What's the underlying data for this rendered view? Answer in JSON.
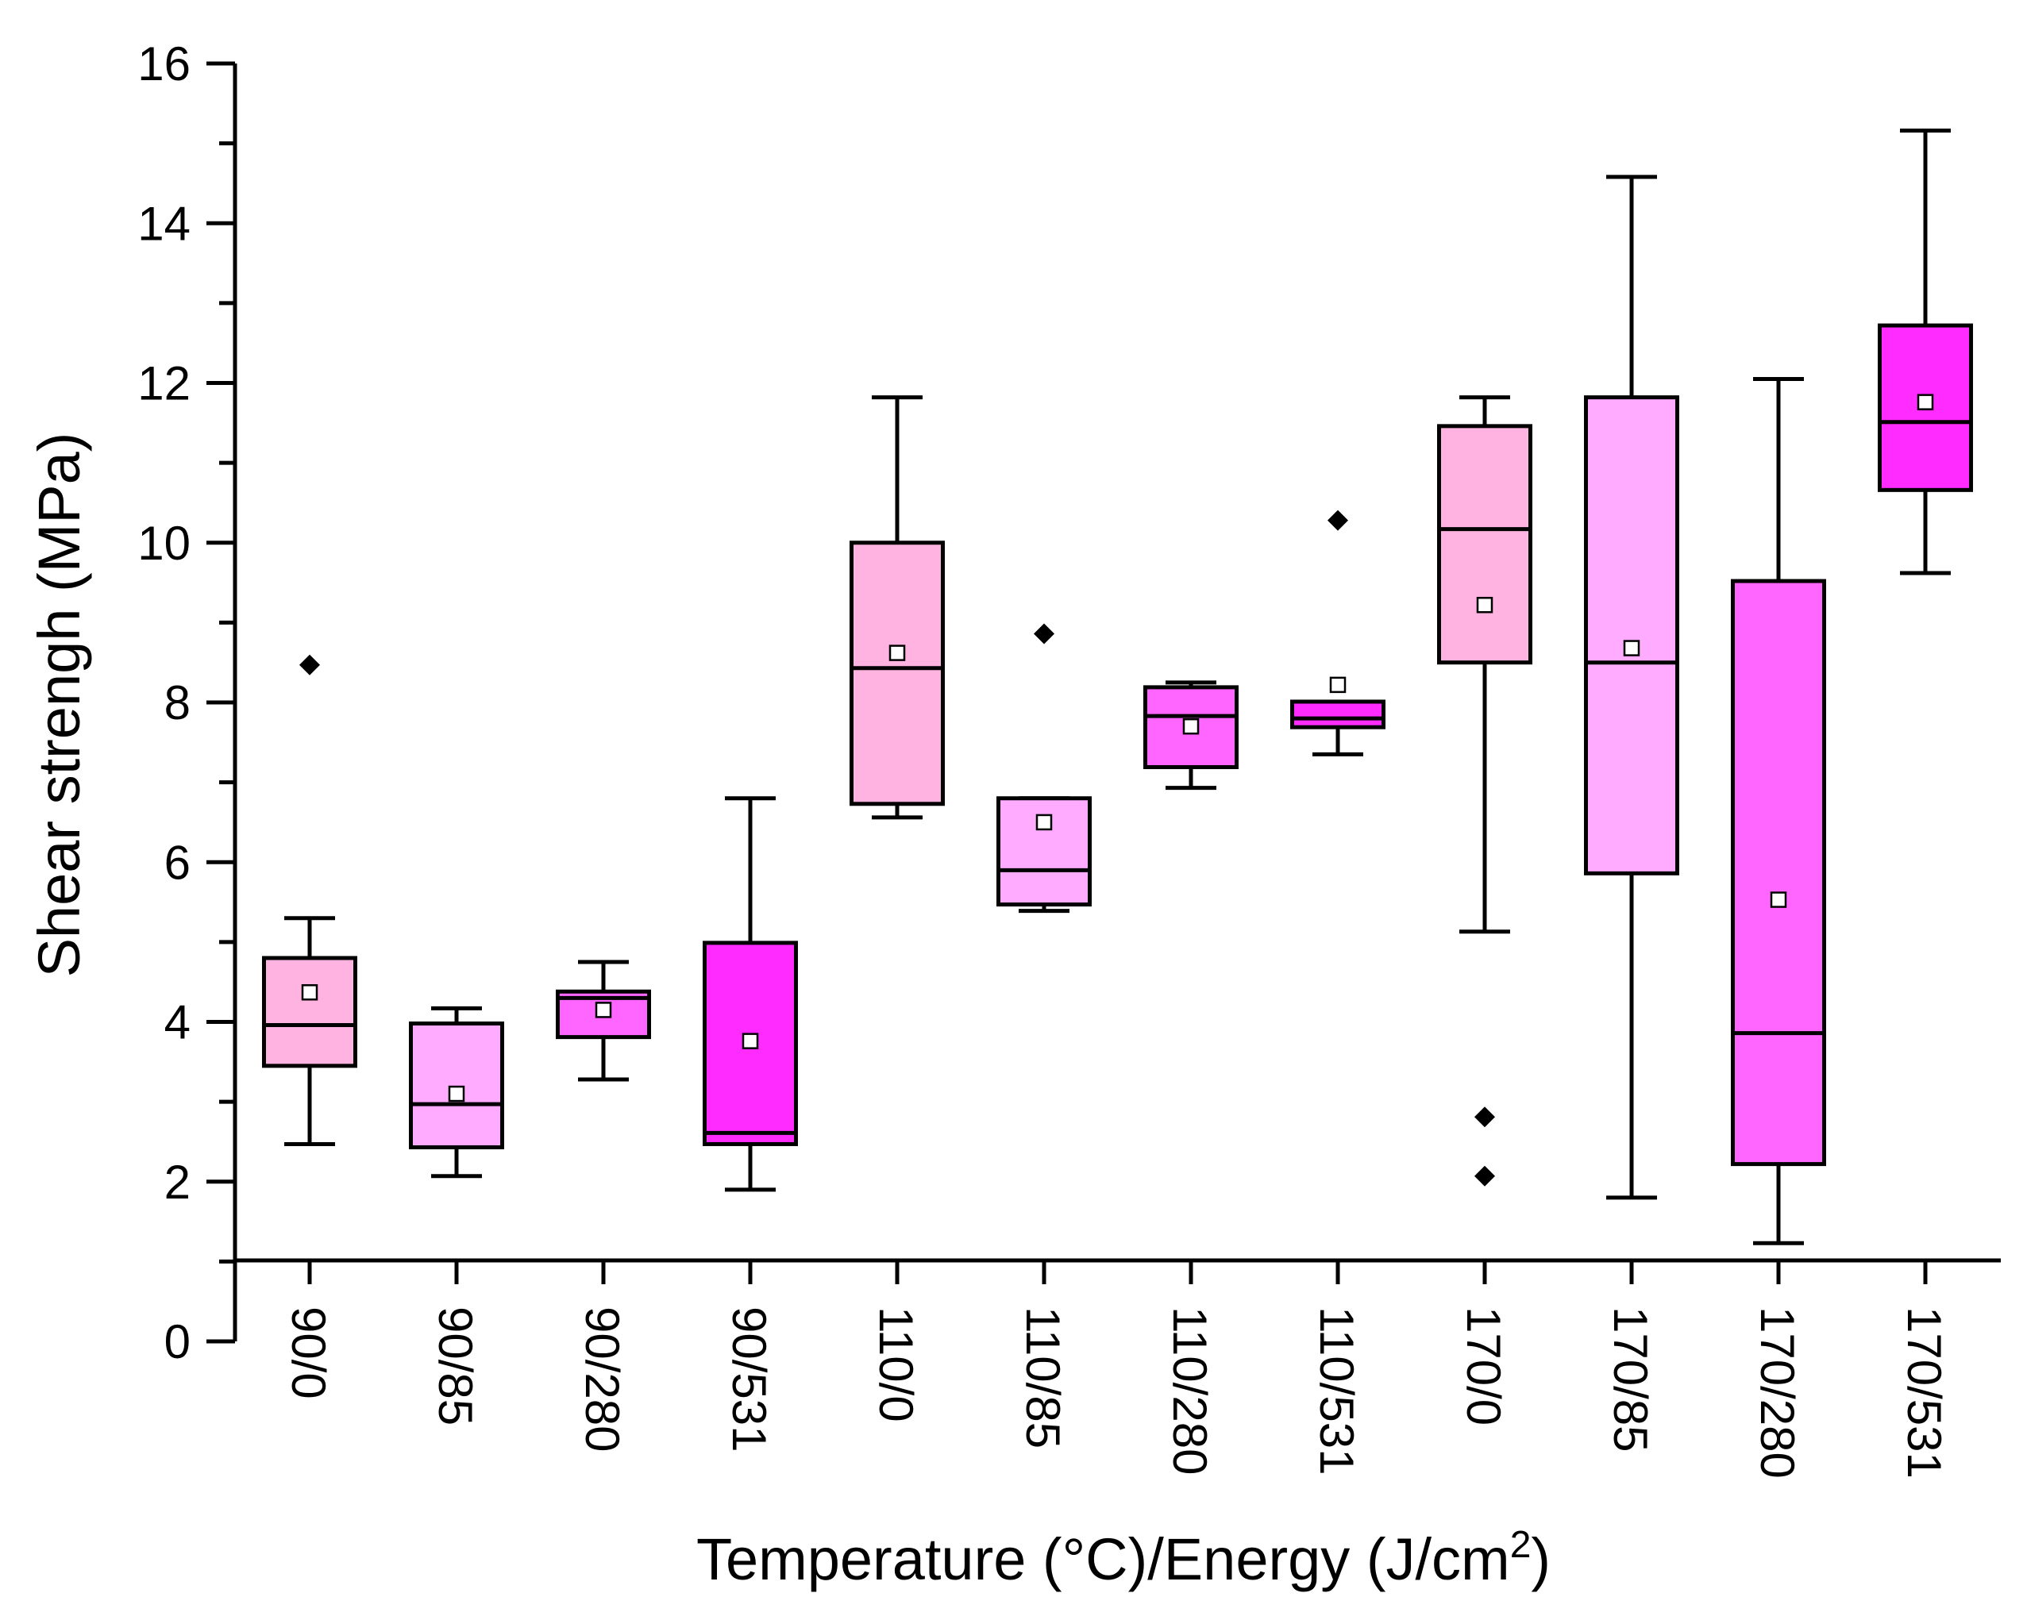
{
  "chart_data": {
    "type": "box",
    "title": "",
    "xlabel": "Temperature (°C)/Energy (J/cm",
    "xlabel_superscript": "2",
    "xlabel_suffix": ")",
    "ylabel": "Shear strengh (MPa)",
    "ylim": [
      0,
      16
    ],
    "yticks": [
      "0",
      "2",
      "4",
      "6",
      "8",
      "10",
      "12",
      "14",
      "16"
    ],
    "categories": [
      "90/0",
      "90/85",
      "90/280",
      "90/531",
      "110/0",
      "110/85",
      "110/280",
      "110/531",
      "170/0",
      "170/85",
      "170/280",
      "170/531"
    ],
    "colors": {
      "light": "#FFB3E0",
      "lighter": "#FFABFF",
      "medium": "#FF66FF",
      "dark": "#FF2BFF",
      "outline": "#000000"
    },
    "series": [
      {
        "name": "90/0",
        "whisker_low": 2.47,
        "q1": 3.45,
        "median": 3.96,
        "q3": 4.8,
        "whisker_high": 5.3,
        "mean": 4.37,
        "outliers": [
          8.47
        ],
        "color": "#FFB3E0"
      },
      {
        "name": "90/85",
        "whisker_low": 2.07,
        "q1": 2.43,
        "median": 2.97,
        "q3": 3.98,
        "whisker_high": 4.17,
        "mean": 3.1,
        "outliers": [],
        "color": "#FFABFF"
      },
      {
        "name": "90/280",
        "whisker_low": 3.28,
        "q1": 3.81,
        "median": 4.3,
        "q3": 4.38,
        "whisker_high": 4.75,
        "mean": 4.15,
        "outliers": [],
        "color": "#FF66FF"
      },
      {
        "name": "90/531",
        "whisker_low": 1.9,
        "q1": 2.47,
        "median": 2.61,
        "q3": 4.99,
        "whisker_high": 6.8,
        "mean": 3.76,
        "outliers": [],
        "color": "#FF2BFF"
      },
      {
        "name": "110/0",
        "whisker_low": 6.56,
        "q1": 6.73,
        "median": 8.43,
        "q3": 10.0,
        "whisker_high": 11.82,
        "mean": 8.62,
        "outliers": [],
        "color": "#FFB3E0"
      },
      {
        "name": "110/85",
        "whisker_low": 5.39,
        "q1": 5.47,
        "median": 5.9,
        "q3": 6.8,
        "whisker_high": 6.8,
        "mean": 6.5,
        "outliers": [
          8.86
        ],
        "color": "#FFABFF"
      },
      {
        "name": "110/280",
        "whisker_low": 6.93,
        "q1": 7.19,
        "median": 7.83,
        "q3": 8.19,
        "whisker_high": 8.25,
        "mean": 7.7,
        "outliers": [],
        "color": "#FF66FF"
      },
      {
        "name": "110/531",
        "whisker_low": 7.35,
        "q1": 7.69,
        "median": 7.8,
        "q3": 8.01,
        "whisker_high": 8.01,
        "mean": 8.22,
        "outliers": [
          10.28
        ],
        "color": "#FF2BFF"
      },
      {
        "name": "170/0",
        "whisker_low": 5.13,
        "q1": 8.5,
        "median": 10.17,
        "q3": 11.46,
        "whisker_high": 11.82,
        "mean": 9.22,
        "outliers": [
          2.81,
          2.07
        ],
        "color": "#FFB3E0"
      },
      {
        "name": "170/85",
        "whisker_low": 1.8,
        "q1": 5.86,
        "median": 8.5,
        "q3": 11.82,
        "whisker_high": 14.58,
        "mean": 8.68,
        "outliers": [],
        "color": "#FFABFF"
      },
      {
        "name": "170/280",
        "whisker_low": 1.23,
        "q1": 2.22,
        "median": 3.86,
        "q3": 9.52,
        "whisker_high": 12.05,
        "mean": 5.53,
        "outliers": [],
        "color": "#FF66FF"
      },
      {
        "name": "170/531",
        "whisker_low": 9.62,
        "q1": 10.66,
        "median": 11.51,
        "q3": 12.72,
        "whisker_high": 15.16,
        "mean": 11.76,
        "outliers": [],
        "color": "#FF2BFF"
      }
    ]
  }
}
